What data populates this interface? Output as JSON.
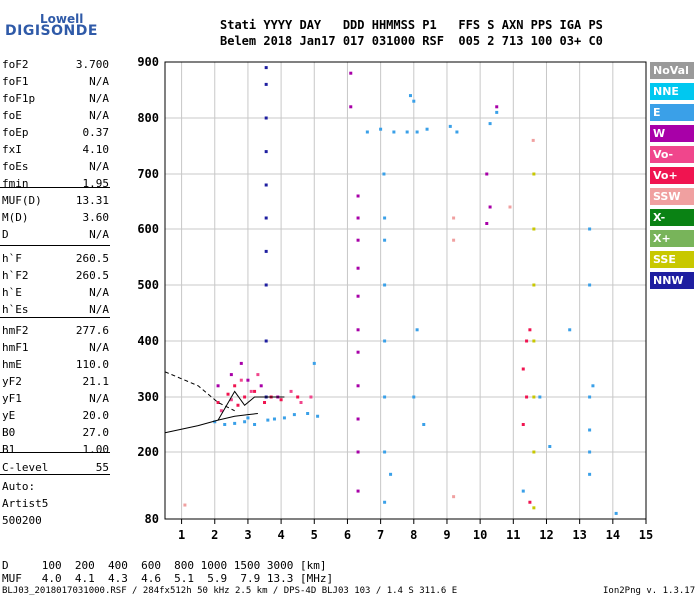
{
  "logo": {
    "line1": "Lowell",
    "line2": "DIGISONDE"
  },
  "header": {
    "row1": "Stati YYYY DAY   DDD HHMMSS P1   FFS S AXN PPS IGA PS",
    "row2": "Belem 2018 Jan17 017 031000 RSF  005 2 713 100 03+ C0"
  },
  "params": [
    {
      "label": "foF2",
      "value": "3.700"
    },
    {
      "label": "foF1",
      "value": "N/A"
    },
    {
      "label": "foF1p",
      "value": "N/A"
    },
    {
      "label": "foE",
      "value": "N/A"
    },
    {
      "label": "foEp",
      "value": "0.37"
    },
    {
      "label": "fxI",
      "value": "4.10"
    },
    {
      "label": "foEs",
      "value": "N/A"
    },
    {
      "label": "fmin",
      "value": "1.95"
    },
    {
      "label": "MUF(D)",
      "value": "13.31"
    },
    {
      "label": "M(D)",
      "value": "3.60"
    },
    {
      "label": "D",
      "value": "N/A"
    },
    {
      "label": "h`F",
      "value": "260.5"
    },
    {
      "label": "h`F2",
      "value": "260.5"
    },
    {
      "label": "h`E",
      "value": "N/A"
    },
    {
      "label": "h`Es",
      "value": "N/A"
    },
    {
      "label": "hmF2",
      "value": "277.6"
    },
    {
      "label": "hmF1",
      "value": "N/A"
    },
    {
      "label": "hmE",
      "value": "110.0"
    },
    {
      "label": "yF2",
      "value": "21.1"
    },
    {
      "label": "yF1",
      "value": "N/A"
    },
    {
      "label": "yE",
      "value": "20.0"
    },
    {
      "label": "B0",
      "value": "27.0"
    },
    {
      "label": "B1",
      "value": "1.00"
    },
    {
      "label": "C-level",
      "value": "55"
    }
  ],
  "auto_info": [
    "Auto:",
    "Artist5",
    "500200"
  ],
  "legend": [
    {
      "label": "NoVal",
      "color": "#9a9a9a"
    },
    {
      "label": "NNE",
      "color": "#00c8f0"
    },
    {
      "label": "E",
      "color": "#3aa0e8"
    },
    {
      "label": "W",
      "color": "#a800a8"
    },
    {
      "label": "Vo-",
      "color": "#f0468c"
    },
    {
      "label": "Vo+",
      "color": "#f01450"
    },
    {
      "label": "SSW",
      "color": "#f0a0a0"
    },
    {
      "label": "X-",
      "color": "#0a8214"
    },
    {
      "label": "X+",
      "color": "#78b45a"
    },
    {
      "label": "SSE",
      "color": "#c8c800"
    },
    {
      "label": "NNW",
      "color": "#1e1ea0"
    }
  ],
  "muf_table": {
    "d_row": "D     100  200  400  600  800 1000 1500 3000 [km]",
    "muf_row": "MUF   4.0  4.1  4.3  4.6  5.1  5.9  7.9 13.3 [MHz]"
  },
  "footer": {
    "left": "BLJ03_2018017031000.RSF / 284fx512h 50 kHz 2.5 km / DPS-4D BLJ03 103 / 1.4 S 311.6 E",
    "right": "Ion2Png v. 1.3.17"
  },
  "chart_data": {
    "type": "scatter",
    "xlim": [
      0.5,
      15
    ],
    "ylim": [
      80,
      900
    ],
    "x_ticks": [
      1,
      2,
      3,
      4,
      5,
      6,
      7,
      8,
      9,
      10,
      11,
      12,
      13,
      14,
      15
    ],
    "y_ticks": [
      80,
      200,
      300,
      400,
      500,
      600,
      700,
      800,
      900
    ],
    "grid": true,
    "traces": [
      {
        "name": "W-6.3",
        "color": "#a800a8",
        "points": [
          [
            6.32,
            130
          ],
          [
            6.32,
            200
          ],
          [
            6.32,
            260
          ],
          [
            6.32,
            320
          ],
          [
            6.32,
            380
          ],
          [
            6.32,
            420
          ],
          [
            6.32,
            480
          ],
          [
            6.32,
            530
          ],
          [
            6.32,
            580
          ],
          [
            6.32,
            620
          ],
          [
            6.32,
            660
          ]
        ]
      },
      {
        "name": "NNW-3.55",
        "color": "#1e1ea0",
        "points": [
          [
            3.55,
            300
          ],
          [
            3.55,
            400
          ],
          [
            3.55,
            500
          ],
          [
            3.55,
            560
          ],
          [
            3.55,
            620
          ],
          [
            3.55,
            680
          ],
          [
            3.55,
            740
          ],
          [
            3.55,
            800
          ],
          [
            3.55,
            860
          ],
          [
            3.55,
            890
          ]
        ]
      },
      {
        "name": "E-7.1",
        "color": "#3aa0e8",
        "points": [
          [
            7.12,
            110
          ],
          [
            7.12,
            200
          ],
          [
            7.12,
            300
          ],
          [
            7.12,
            400
          ],
          [
            7.12,
            500
          ],
          [
            7.12,
            580
          ],
          [
            7.12,
            620
          ],
          [
            7.1,
            700
          ]
        ]
      },
      {
        "name": "E-cluster",
        "color": "#3aa0e8",
        "points": [
          [
            2.0,
            255
          ],
          [
            2.3,
            250
          ],
          [
            2.6,
            252
          ],
          [
            2.9,
            255
          ],
          [
            3.2,
            250
          ],
          [
            3.6,
            258
          ],
          [
            4.1,
            262
          ],
          [
            4.4,
            268
          ],
          [
            4.8,
            270
          ],
          [
            5.1,
            265
          ],
          [
            3.0,
            262
          ],
          [
            3.8,
            260
          ]
        ]
      },
      {
        "name": "Vo+-cluster",
        "color": "#f01450",
        "points": [
          [
            2.1,
            290
          ],
          [
            2.4,
            305
          ],
          [
            2.6,
            320
          ],
          [
            2.9,
            300
          ],
          [
            3.2,
            310
          ],
          [
            3.5,
            290
          ],
          [
            3.7,
            300
          ],
          [
            4.0,
            295
          ],
          [
            4.5,
            300
          ],
          [
            2.7,
            285
          ]
        ]
      },
      {
        "name": "Vo--cluster",
        "color": "#f0468c",
        "points": [
          [
            2.2,
            275
          ],
          [
            2.5,
            295
          ],
          [
            2.8,
            330
          ],
          [
            3.1,
            310
          ],
          [
            3.3,
            340
          ],
          [
            4.3,
            310
          ],
          [
            4.6,
            290
          ],
          [
            4.9,
            300
          ]
        ]
      },
      {
        "name": "W-cluster",
        "color": "#a800a8",
        "points": [
          [
            2.1,
            320
          ],
          [
            2.5,
            340
          ],
          [
            2.8,
            360
          ],
          [
            3.0,
            330
          ],
          [
            3.4,
            320
          ],
          [
            3.9,
            300
          ],
          [
            6.1,
            880
          ],
          [
            6.1,
            820
          ],
          [
            10.2,
            700
          ],
          [
            10.5,
            820
          ],
          [
            10.3,
            640
          ],
          [
            10.2,
            610
          ]
        ]
      },
      {
        "name": "E-800",
        "color": "#3aa0e8",
        "points": [
          [
            6.6,
            775
          ],
          [
            7.0,
            780
          ],
          [
            7.4,
            775
          ],
          [
            7.8,
            775
          ],
          [
            8.1,
            775
          ],
          [
            8.4,
            780
          ],
          [
            9.1,
            785
          ],
          [
            9.3,
            775
          ],
          [
            10.3,
            790
          ],
          [
            10.5,
            810
          ],
          [
            8.0,
            830
          ],
          [
            7.9,
            840
          ]
        ]
      },
      {
        "name": "SSE-11.6",
        "color": "#c8c800",
        "points": [
          [
            11.62,
            100
          ],
          [
            11.62,
            200
          ],
          [
            11.62,
            300
          ],
          [
            11.62,
            400
          ],
          [
            11.62,
            500
          ],
          [
            11.62,
            600
          ],
          [
            11.62,
            700
          ]
        ]
      },
      {
        "name": "E-13.3",
        "color": "#3aa0e8",
        "points": [
          [
            13.3,
            160
          ],
          [
            13.3,
            200
          ],
          [
            13.3,
            240
          ],
          [
            13.3,
            300
          ],
          [
            13.4,
            320
          ],
          [
            13.3,
            600
          ],
          [
            13.3,
            500
          ]
        ]
      },
      {
        "name": "Vo+-far",
        "color": "#f01450",
        "points": [
          [
            11.3,
            350
          ],
          [
            11.4,
            400
          ],
          [
            11.5,
            420
          ],
          [
            11.4,
            300
          ],
          [
            11.3,
            250
          ],
          [
            11.5,
            110
          ]
        ]
      },
      {
        "name": "SSW-far",
        "color": "#f0a0a0",
        "points": [
          [
            1.1,
            105
          ],
          [
            9.2,
            120
          ],
          [
            9.2,
            580
          ],
          [
            9.2,
            620
          ],
          [
            11.6,
            760
          ],
          [
            10.9,
            640
          ]
        ]
      },
      {
        "name": "E-scatter",
        "color": "#3aa0e8",
        "points": [
          [
            8.0,
            300
          ],
          [
            8.1,
            420
          ],
          [
            8.3,
            250
          ],
          [
            7.3,
            160
          ],
          [
            12.1,
            210
          ],
          [
            11.3,
            130
          ],
          [
            11.8,
            300
          ],
          [
            5.0,
            360
          ],
          [
            12.7,
            420
          ],
          [
            14.1,
            90
          ]
        ]
      }
    ],
    "frame_line_label": "",
    "trace_lines": [
      {
        "color": "#000000",
        "dashed": true,
        "points": [
          [
            0.5,
            345
          ],
          [
            1.5,
            320
          ],
          [
            2.1,
            290
          ],
          [
            2.6,
            275
          ]
        ]
      },
      {
        "color": "#000000",
        "dashed": false,
        "points": [
          [
            0.5,
            235
          ],
          [
            1.5,
            248
          ],
          [
            2.1,
            258
          ],
          [
            2.6,
            265
          ],
          [
            3.0,
            268
          ],
          [
            3.3,
            270
          ]
        ]
      },
      {
        "color": "#000000",
        "dashed": false,
        "points": [
          [
            2.1,
            258
          ],
          [
            2.6,
            310
          ],
          [
            2.9,
            285
          ],
          [
            3.2,
            300
          ],
          [
            3.5,
            300
          ],
          [
            3.7,
            300
          ],
          [
            4.1,
            300
          ]
        ]
      }
    ]
  }
}
